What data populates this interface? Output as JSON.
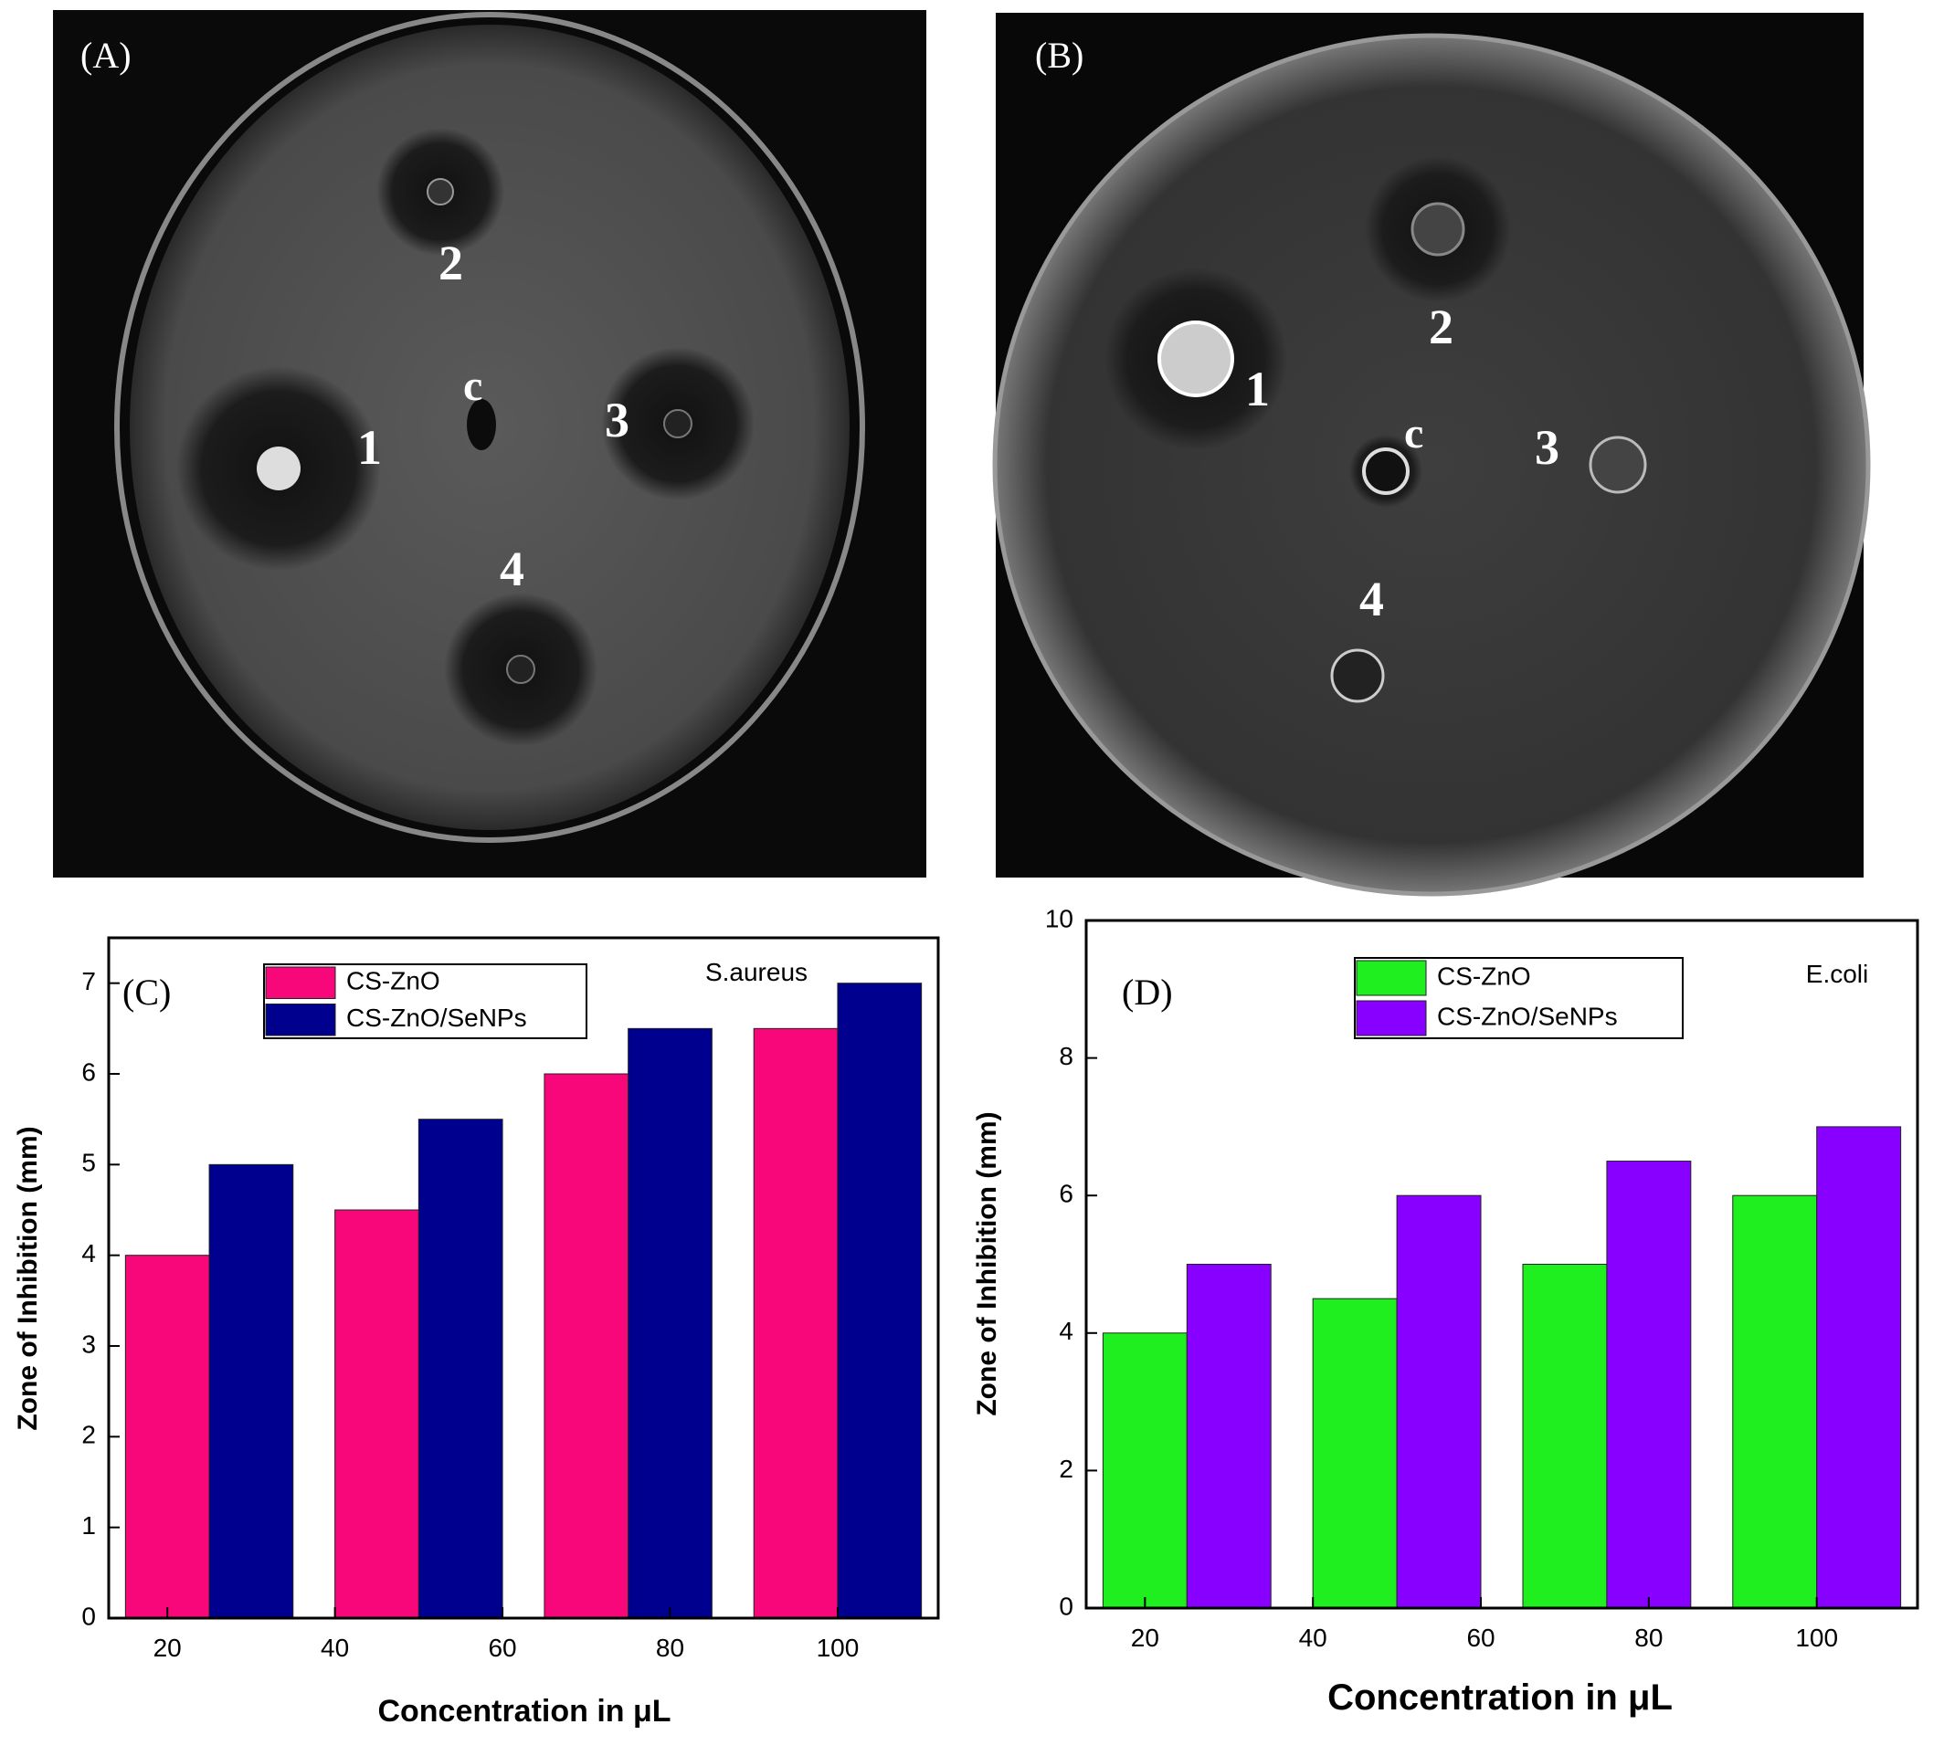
{
  "photos": [
    {
      "label": "(A)",
      "wells": [
        "1",
        "2",
        "c",
        "3",
        "4"
      ]
    },
    {
      "label": "(B)",
      "wells": [
        "1",
        "2",
        "c",
        "3",
        "4"
      ]
    }
  ],
  "chart_data": [
    {
      "type": "bar",
      "label": "(C)",
      "annotation": "S.aureus",
      "xlabel": "Concentration in μL",
      "ylabel": "Zone of Inhibition (mm)",
      "x": [
        25,
        50,
        75,
        100
      ],
      "xlim": [
        13,
        112
      ],
      "xticks": [
        20,
        40,
        60,
        80,
        100
      ],
      "ylim": [
        0,
        7.5
      ],
      "yticks": [
        0,
        1,
        2,
        3,
        4,
        5,
        6,
        7
      ],
      "series": [
        {
          "name": "CS-ZnO",
          "color": "#f8077b",
          "values": [
            4,
            4.5,
            6,
            6.5
          ]
        },
        {
          "name": "CS-ZnO/SeNPs",
          "color": "#00008f",
          "values": [
            5,
            5.5,
            6.5,
            7
          ]
        }
      ]
    },
    {
      "type": "bar",
      "label": "(D)",
      "annotation": "E.coli",
      "xlabel": "Concentration in μL",
      "ylabel": "Zone of Inhibition (mm)",
      "x": [
        25,
        50,
        75,
        100
      ],
      "xlim": [
        13,
        112
      ],
      "xticks": [
        20,
        40,
        60,
        80,
        100
      ],
      "ylim": [
        0,
        10
      ],
      "yticks": [
        0,
        2,
        4,
        6,
        8,
        10
      ],
      "series": [
        {
          "name": "CS-ZnO",
          "color": "#1fef1f",
          "values": [
            4,
            4.5,
            5,
            6
          ]
        },
        {
          "name": "CS-ZnO/SeNPs",
          "color": "#8800ff",
          "values": [
            5,
            6,
            6.5,
            7
          ]
        }
      ]
    }
  ]
}
